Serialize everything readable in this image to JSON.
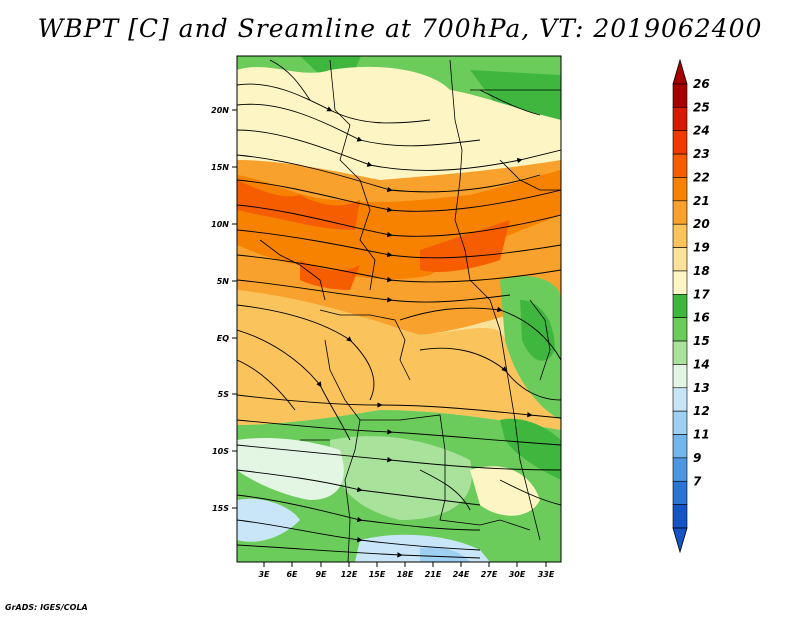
{
  "title": "WBPT [C] and Sreamline at 700hPa, VT: 2019062400",
  "credit": "GrADS: IGES/COLA",
  "map": {
    "lat_labels": [
      "20N",
      "15N",
      "10N",
      "5N",
      "EQ",
      "5S",
      "10S",
      "15S"
    ],
    "lon_labels": [
      "3E",
      "6E",
      "9E",
      "12E",
      "15E",
      "18E",
      "21E",
      "24E",
      "27E",
      "30E",
      "33E"
    ]
  },
  "colorbar": {
    "labels": [
      "26",
      "25",
      "24",
      "23",
      "22",
      "21",
      "20",
      "19",
      "18",
      "17",
      "16",
      "15",
      "14",
      "13",
      "12",
      "11",
      "9",
      "7"
    ],
    "colors": [
      "#a50000",
      "#d61a00",
      "#ee3a00",
      "#f65c00",
      "#f78200",
      "#f8a12c",
      "#fac35c",
      "#fbe29a",
      "#fdf6c4",
      "#3fb73f",
      "#6ccc5b",
      "#a8e29b",
      "#e3f6e3",
      "#c8e6f8",
      "#9ed0f2",
      "#72b6ea",
      "#4c97df",
      "#2b74d3",
      "#1554c4"
    ],
    "top_color": "#a50000",
    "bottom_color": "#1554c4"
  }
}
